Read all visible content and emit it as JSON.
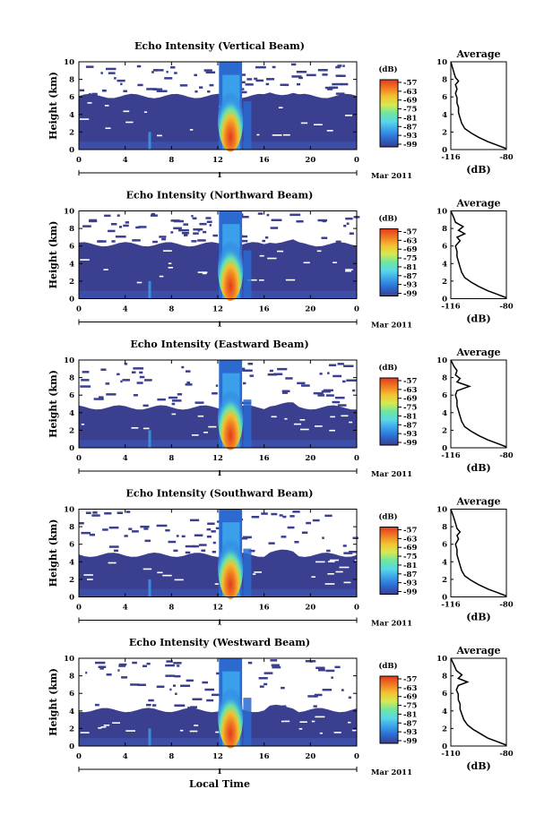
{
  "chart_data": {
    "type": "heatmap",
    "panel_titles": [
      "Echo Intensity (Vertical Beam)",
      "Echo Intensity (Northward Beam)",
      "Echo Intensity (Eastward Beam)",
      "Echo Intensity (Southward Beam)",
      "Echo Intensity (Westward Beam)"
    ],
    "ylabel": "Height (km)",
    "xlabel": "Local Time",
    "x_ticks": [
      "0",
      "4",
      "8",
      "12",
      "16",
      "20",
      "0"
    ],
    "y_ticks": [
      "0",
      "2",
      "4",
      "6",
      "8",
      "10"
    ],
    "xlim": [
      0,
      24
    ],
    "ylim": [
      0,
      10
    ],
    "date_day": "1",
    "date_month": "Mar 2011",
    "colorbar": {
      "label": "(dB)",
      "ticks": [
        "-57",
        "-63",
        "-69",
        "-75",
        "-81",
        "-87",
        "-93",
        "-99"
      ],
      "colors": [
        "#3b3f8f",
        "#2c6ad0",
        "#3aa0ea",
        "#58d8e8",
        "#6ee6a0",
        "#d6ea50",
        "#f2c232",
        "#f07a22",
        "#e23a1e"
      ]
    },
    "average_panel": {
      "title": "Average",
      "xlabel": "(dB)",
      "x_ticks": [
        [
          "-116",
          "-80"
        ],
        [
          "-116",
          "-80"
        ],
        [
          "-116",
          "-80"
        ],
        [
          "-116",
          "-80"
        ],
        [
          "-110",
          "-80"
        ]
      ],
      "xlim": [
        [
          -116,
          -80
        ],
        [
          -116,
          -80
        ],
        [
          -116,
          -80
        ],
        [
          -116,
          -80
        ],
        [
          -110,
          -80
        ]
      ],
      "profiles": [
        [
          [
            -80,
            0.1
          ],
          [
            -86,
            0.5
          ],
          [
            -92,
            0.9
          ],
          [
            -98,
            1.4
          ],
          [
            -103,
            1.9
          ],
          [
            -107,
            2.4
          ],
          [
            -109,
            3.0
          ],
          [
            -110,
            3.6
          ],
          [
            -111,
            4.2
          ],
          [
            -111,
            4.8
          ],
          [
            -112,
            5.3
          ],
          [
            -112,
            5.9
          ],
          [
            -113,
            6.4
          ],
          [
            -112,
            6.9
          ],
          [
            -113,
            7.4
          ],
          [
            -111,
            7.8
          ],
          [
            -113,
            8.2
          ],
          [
            -114,
            8.8
          ],
          [
            -115,
            9.4
          ],
          [
            -116,
            10.0
          ]
        ],
        [
          [
            -80,
            0.1
          ],
          [
            -86,
            0.5
          ],
          [
            -92,
            0.9
          ],
          [
            -98,
            1.4
          ],
          [
            -103,
            1.9
          ],
          [
            -107,
            2.4
          ],
          [
            -109,
            3.0
          ],
          [
            -110,
            3.6
          ],
          [
            -111,
            4.2
          ],
          [
            -112,
            4.8
          ],
          [
            -112,
            5.4
          ],
          [
            -113,
            6.0
          ],
          [
            -110,
            6.6
          ],
          [
            -112,
            7.0
          ],
          [
            -107,
            7.4
          ],
          [
            -111,
            7.8
          ],
          [
            -108,
            8.2
          ],
          [
            -113,
            8.7
          ],
          [
            -114,
            9.2
          ],
          [
            -116,
            10.0
          ]
        ],
        [
          [
            -80,
            0.1
          ],
          [
            -86,
            0.5
          ],
          [
            -92,
            0.9
          ],
          [
            -98,
            1.4
          ],
          [
            -103,
            1.9
          ],
          [
            -107,
            2.4
          ],
          [
            -109,
            3.0
          ],
          [
            -110,
            3.6
          ],
          [
            -111,
            4.2
          ],
          [
            -112,
            4.8
          ],
          [
            -112,
            5.4
          ],
          [
            -113,
            6.0
          ],
          [
            -112,
            6.5
          ],
          [
            -104,
            7.0
          ],
          [
            -112,
            7.5
          ],
          [
            -110,
            7.9
          ],
          [
            -113,
            8.3
          ],
          [
            -112,
            8.8
          ],
          [
            -114,
            9.3
          ],
          [
            -116,
            10.0
          ]
        ],
        [
          [
            -80,
            0.1
          ],
          [
            -86,
            0.5
          ],
          [
            -92,
            0.9
          ],
          [
            -98,
            1.4
          ],
          [
            -103,
            1.9
          ],
          [
            -107,
            2.4
          ],
          [
            -109,
            3.0
          ],
          [
            -110,
            3.6
          ],
          [
            -111,
            4.2
          ],
          [
            -112,
            4.8
          ],
          [
            -112,
            5.4
          ],
          [
            -113,
            6.0
          ],
          [
            -111,
            6.6
          ],
          [
            -112,
            7.0
          ],
          [
            -110,
            7.4
          ],
          [
            -112,
            7.8
          ],
          [
            -113,
            8.4
          ],
          [
            -114,
            9.0
          ],
          [
            -115,
            9.5
          ],
          [
            -116,
            10.0
          ]
        ],
        [
          [
            -80,
            0.1
          ],
          [
            -85,
            0.5
          ],
          [
            -90,
            0.9
          ],
          [
            -94,
            1.4
          ],
          [
            -98,
            1.9
          ],
          [
            -101,
            2.4
          ],
          [
            -103,
            3.0
          ],
          [
            -104,
            3.6
          ],
          [
            -105,
            4.2
          ],
          [
            -105,
            4.8
          ],
          [
            -106,
            5.3
          ],
          [
            -106,
            5.9
          ],
          [
            -107,
            6.4
          ],
          [
            -106,
            6.9
          ],
          [
            -101,
            7.3
          ],
          [
            -106,
            7.7
          ],
          [
            -104,
            8.1
          ],
          [
            -107,
            8.6
          ],
          [
            -108,
            9.1
          ],
          [
            -110,
            10.0
          ]
        ]
      ]
    }
  }
}
